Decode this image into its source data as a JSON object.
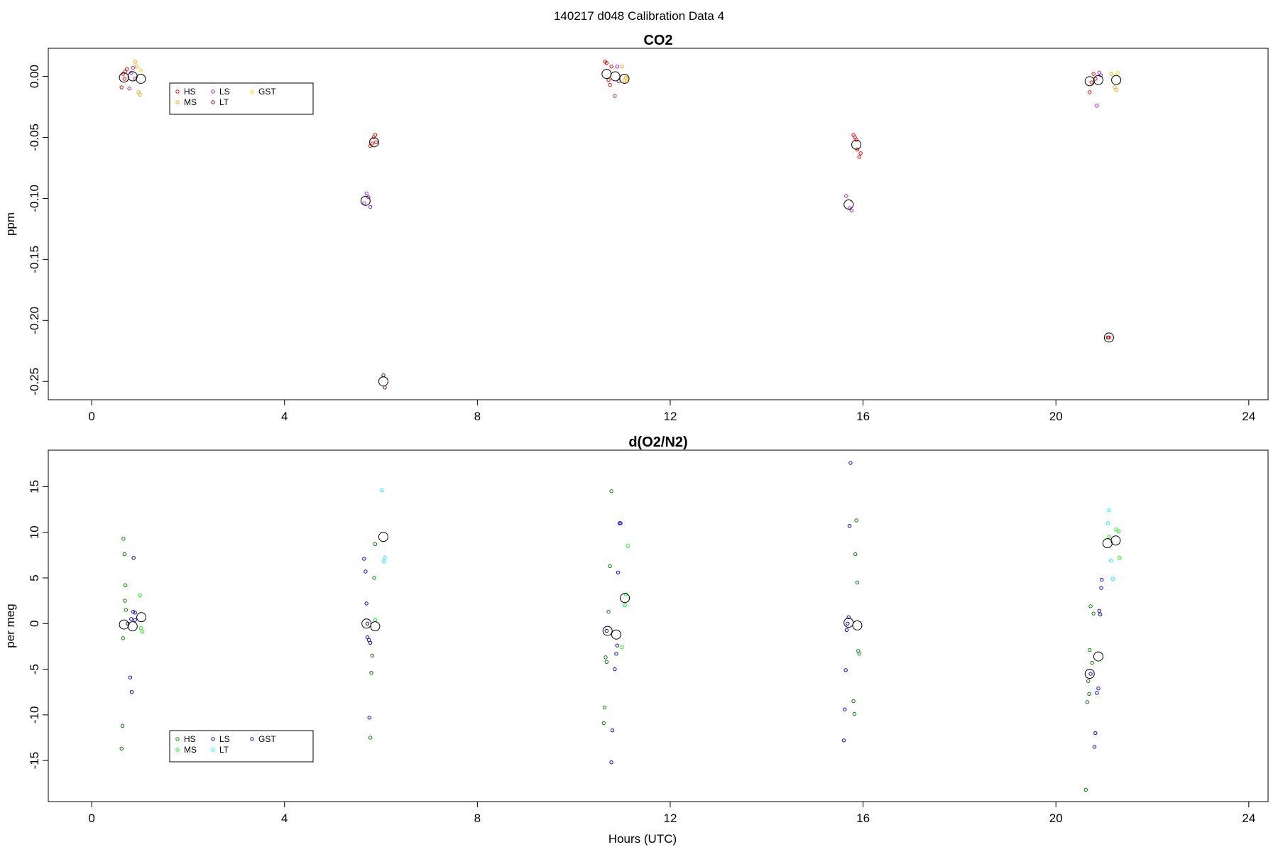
{
  "page_title": "140217   d048   Calibration Data 4",
  "xlabel": "Hours (UTC)",
  "x_ticks": [
    0,
    4,
    8,
    12,
    16,
    20,
    24
  ],
  "chart_data": [
    {
      "type": "scatter",
      "title": "CO2",
      "ylabel": "ppm",
      "xlim": [
        -0.9,
        24.4
      ],
      "ylim": [
        -0.265,
        0.023
      ],
      "y_ticks": [
        0.0,
        -0.05,
        -0.1,
        -0.15,
        -0.2,
        -0.25
      ],
      "y_tick_labels": [
        "0.00",
        "-0.05",
        "-0.10",
        "-0.15",
        "-0.20",
        "-0.25"
      ],
      "legend": {
        "position": "top-left",
        "entries": [
          {
            "label": "HS",
            "color": "#ff0000"
          },
          {
            "label": "MS",
            "color": "#ffa500"
          },
          {
            "label": "LS",
            "color": "#a020f0"
          },
          {
            "label": "LT",
            "color": "#8b0000"
          },
          {
            "label": "GST",
            "color": "#ffd700"
          }
        ]
      },
      "series": [
        {
          "name": "HS",
          "color": "#ff0000",
          "points": [
            [
              0.62,
              -0.009
            ],
            [
              0.65,
              0.002
            ],
            [
              0.68,
              -0.002
            ],
            [
              0.7,
              0.004
            ],
            [
              0.73,
              0.006
            ],
            [
              5.78,
              -0.057
            ],
            [
              5.82,
              -0.055
            ],
            [
              5.85,
              -0.05
            ],
            [
              5.88,
              -0.048
            ],
            [
              5.9,
              -0.054
            ],
            [
              10.65,
              0.012
            ],
            [
              10.68,
              0.011
            ],
            [
              10.72,
              -0.003
            ],
            [
              10.75,
              -0.007
            ],
            [
              10.78,
              0.008
            ],
            [
              15.8,
              -0.048
            ],
            [
              15.83,
              -0.05
            ],
            [
              15.86,
              -0.052
            ],
            [
              15.88,
              -0.06
            ],
            [
              15.92,
              -0.066
            ],
            [
              15.95,
              -0.063
            ],
            [
              20.7,
              -0.013
            ],
            [
              20.74,
              -0.005
            ],
            [
              20.78,
              0.002
            ],
            [
              20.82,
              -0.002
            ],
            [
              21.1,
              -0.214
            ]
          ]
        },
        {
          "name": "MS",
          "color": "#ffa500",
          "points": [
            [
              0.9,
              0.012
            ],
            [
              0.93,
              0.008
            ],
            [
              0.97,
              -0.013
            ],
            [
              1.0,
              -0.015
            ],
            [
              11.0,
              0.008
            ],
            [
              11.05,
              -0.004
            ],
            [
              11.08,
              -0.001
            ],
            [
              21.15,
              0.002
            ],
            [
              21.22,
              -0.009
            ],
            [
              21.25,
              -0.011
            ]
          ]
        },
        {
          "name": "LS",
          "color": "#a020f0",
          "points": [
            [
              0.78,
              -0.01
            ],
            [
              0.82,
              0.003
            ],
            [
              0.86,
              0.007
            ],
            [
              0.9,
              -0.002
            ],
            [
              5.65,
              -0.104
            ],
            [
              5.7,
              -0.096
            ],
            [
              5.74,
              -0.099
            ],
            [
              5.78,
              -0.107
            ],
            [
              10.85,
              -0.016
            ],
            [
              10.9,
              0.008
            ],
            [
              10.93,
              -0.004
            ],
            [
              15.65,
              -0.098
            ],
            [
              15.72,
              -0.108
            ],
            [
              15.76,
              -0.11
            ],
            [
              20.85,
              -0.024
            ],
            [
              20.9,
              0.003
            ],
            [
              20.93,
              0.001
            ]
          ]
        },
        {
          "name": "LT",
          "color": "#8b0000",
          "points": [
            [
              6.05,
              -0.245
            ],
            [
              6.08,
              -0.255
            ],
            [
              21.08,
              -0.214
            ]
          ]
        },
        {
          "name": "GST",
          "color": "#ffd700",
          "points": [
            [
              1.02,
              0.005
            ],
            [
              11.12,
              -0.002
            ],
            [
              21.28,
              0.003
            ]
          ]
        }
      ],
      "means": [
        [
          0.67,
          -0.001
        ],
        [
          0.85,
          0.0
        ],
        [
          1.02,
          -0.002
        ],
        [
          5.68,
          -0.102
        ],
        [
          5.86,
          -0.054
        ],
        [
          6.05,
          -0.25
        ],
        [
          10.68,
          0.002
        ],
        [
          10.86,
          0.0
        ],
        [
          11.05,
          -0.002
        ],
        [
          15.7,
          -0.105
        ],
        [
          15.86,
          -0.056
        ],
        [
          20.7,
          -0.004
        ],
        [
          20.88,
          -0.003
        ],
        [
          21.1,
          -0.214
        ],
        [
          21.25,
          -0.003
        ]
      ]
    },
    {
      "type": "scatter",
      "title": "d(O2/N2)",
      "ylabel": "per meg",
      "xlim": [
        -0.9,
        24.4
      ],
      "ylim": [
        -19.5,
        19.0
      ],
      "y_ticks": [
        15,
        10,
        5,
        0,
        -5,
        -10,
        -15
      ],
      "y_tick_labels": [
        "15",
        "10",
        "5",
        "0",
        "-5",
        "-10",
        "-15"
      ],
      "legend": {
        "position": "bottom-left",
        "entries": [
          {
            "label": "HS",
            "color": "#008000"
          },
          {
            "label": "MS",
            "color": "#00ff00"
          },
          {
            "label": "LS",
            "color": "#0000ff"
          },
          {
            "label": "LT",
            "color": "#00ffff"
          },
          {
            "label": "GST",
            "color": "#0000cd"
          }
        ]
      },
      "series": [
        {
          "name": "HS",
          "color": "#008000",
          "points": [
            [
              0.62,
              -13.7
            ],
            [
              0.64,
              -11.2
            ],
            [
              0.66,
              9.3
            ],
            [
              0.68,
              7.6
            ],
            [
              0.7,
              4.2
            ],
            [
              0.69,
              2.5
            ],
            [
              0.71,
              1.5
            ],
            [
              0.65,
              -1.6
            ],
            [
              5.78,
              -12.5
            ],
            [
              5.8,
              -5.4
            ],
            [
              5.82,
              -3.5
            ],
            [
              5.86,
              5.0
            ],
            [
              5.88,
              8.7
            ],
            [
              10.62,
              -10.9
            ],
            [
              10.64,
              -9.2
            ],
            [
              10.66,
              -3.7
            ],
            [
              10.68,
              -4.2
            ],
            [
              10.72,
              1.3
            ],
            [
              10.75,
              6.3
            ],
            [
              10.78,
              14.5
            ],
            [
              15.8,
              -8.5
            ],
            [
              15.84,
              7.6
            ],
            [
              15.86,
              11.3
            ],
            [
              15.88,
              4.5
            ],
            [
              15.9,
              -3.0
            ],
            [
              15.92,
              -3.3
            ],
            [
              15.82,
              -9.9
            ],
            [
              20.62,
              -18.2
            ],
            [
              20.65,
              -8.6
            ],
            [
              20.67,
              -6.3
            ],
            [
              20.7,
              -2.9
            ],
            [
              20.72,
              1.9
            ],
            [
              20.75,
              -4.3
            ],
            [
              20.78,
              1.1
            ],
            [
              20.69,
              -7.7
            ]
          ]
        },
        {
          "name": "MS",
          "color": "#00ff00",
          "points": [
            [
              1.0,
              3.1
            ],
            [
              1.02,
              -0.5
            ],
            [
              1.05,
              -0.9
            ],
            [
              5.88,
              0.4
            ],
            [
              11.0,
              -2.6
            ],
            [
              11.08,
              3.2
            ],
            [
              11.06,
              2.0
            ],
            [
              11.12,
              8.5
            ],
            [
              21.1,
              9.5
            ],
            [
              21.25,
              10.3
            ],
            [
              21.3,
              10.1
            ],
            [
              21.32,
              7.2
            ]
          ]
        },
        {
          "name": "LS",
          "color": "#0000ff",
          "points": [
            [
              0.8,
              -5.9
            ],
            [
              0.83,
              -7.5
            ],
            [
              0.87,
              7.2
            ],
            [
              0.86,
              1.3
            ],
            [
              0.9,
              1.2
            ],
            [
              0.9,
              0.4
            ],
            [
              0.82,
              0.5
            ],
            [
              5.65,
              7.1
            ],
            [
              5.68,
              5.7
            ],
            [
              5.7,
              2.2
            ],
            [
              5.72,
              -1.5
            ],
            [
              5.75,
              -1.8
            ],
            [
              5.78,
              -2.1
            ],
            [
              5.76,
              -10.3
            ],
            [
              10.78,
              -15.2
            ],
            [
              10.8,
              -11.7
            ],
            [
              10.85,
              -5.0
            ],
            [
              10.88,
              -3.3
            ],
            [
              10.9,
              -2.4
            ],
            [
              10.92,
              5.6
            ],
            [
              10.95,
              11.0
            ],
            [
              10.97,
              11.0
            ],
            [
              15.6,
              -12.8
            ],
            [
              15.62,
              -9.4
            ],
            [
              15.64,
              -5.1
            ],
            [
              15.66,
              -0.7
            ],
            [
              15.7,
              0.7
            ],
            [
              15.72,
              10.7
            ],
            [
              15.74,
              17.6
            ],
            [
              20.8,
              -13.5
            ],
            [
              20.82,
              -12.0
            ],
            [
              20.85,
              -7.6
            ],
            [
              20.88,
              -7.1
            ],
            [
              20.9,
              1.4
            ],
            [
              20.92,
              1.0
            ],
            [
              20.94,
              3.9
            ],
            [
              20.95,
              4.8
            ]
          ]
        },
        {
          "name": "LT",
          "color": "#00ffff",
          "points": [
            [
              6.02,
              14.6
            ],
            [
              6.08,
              7.2
            ],
            [
              6.06,
              6.8
            ],
            [
              21.08,
              11.0
            ],
            [
              21.1,
              12.4
            ],
            [
              21.14,
              6.9
            ],
            [
              21.18,
              4.9
            ]
          ]
        },
        {
          "name": "GST",
          "color": "#0000cd",
          "points": [
            [
              0.75,
              0.0
            ],
            [
              5.72,
              0.0
            ],
            [
              10.68,
              -0.8
            ],
            [
              15.68,
              0.0
            ],
            [
              20.72,
              -5.5
            ]
          ]
        }
      ],
      "means": [
        [
          0.67,
          -0.1
        ],
        [
          0.85,
          -0.3
        ],
        [
          1.03,
          0.7
        ],
        [
          5.7,
          0.0
        ],
        [
          5.88,
          -0.3
        ],
        [
          6.05,
          9.5
        ],
        [
          10.7,
          -0.8
        ],
        [
          10.88,
          -1.2
        ],
        [
          11.06,
          2.8
        ],
        [
          15.7,
          0.1
        ],
        [
          15.88,
          -0.2
        ],
        [
          20.7,
          -5.5
        ],
        [
          20.88,
          -3.6
        ],
        [
          21.07,
          8.8
        ],
        [
          21.24,
          9.1
        ]
      ]
    }
  ]
}
